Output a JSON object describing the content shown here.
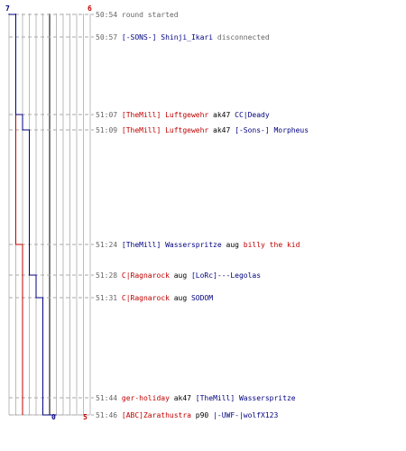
{
  "scores": {
    "top_left": "7",
    "top_right": "6",
    "bottom_blue": "0",
    "bottom_red": "5"
  },
  "colors": {
    "team_red": "#c00000",
    "team_blue": "#000080",
    "time": "#666666",
    "grid": "#bbbbbb"
  },
  "events": [
    {
      "time": "50:54",
      "parts": [
        {
          "text": "round started",
          "c": "gray"
        }
      ]
    },
    {
      "time": "50:57",
      "parts": [
        {
          "text": "[-SONS-] Shinji_Ikari",
          "c": "blue"
        },
        {
          "text": " disconnected",
          "c": "gray"
        }
      ]
    },
    {
      "time": "51:07",
      "parts": [
        {
          "text": "[TheMill] Luftgewehr",
          "c": "red"
        },
        {
          "text": " ak47 ",
          "c": "black"
        },
        {
          "text": "CC|Deady",
          "c": "blue"
        }
      ]
    },
    {
      "time": "51:09",
      "parts": [
        {
          "text": "[TheMill] Luftgewehr",
          "c": "red"
        },
        {
          "text": " ak47 ",
          "c": "black"
        },
        {
          "text": "[-Sons-] Morpheus",
          "c": "blue"
        }
      ]
    },
    {
      "time": "51:24",
      "parts": [
        {
          "text": "[TheMill] Wasserspritze",
          "c": "blue"
        },
        {
          "text": " aug ",
          "c": "black"
        },
        {
          "text": "billy the kid",
          "c": "red"
        }
      ]
    },
    {
      "time": "51:28",
      "parts": [
        {
          "text": "C|Ragnarock",
          "c": "red"
        },
        {
          "text": " aug ",
          "c": "black"
        },
        {
          "text": "[LoRc]---Legolas",
          "c": "blue"
        }
      ]
    },
    {
      "time": "51:31",
      "parts": [
        {
          "text": "C|Ragnarock",
          "c": "red"
        },
        {
          "text": " aug ",
          "c": "black"
        },
        {
          "text": "SODOM",
          "c": "blue"
        }
      ]
    },
    {
      "time": "51:44",
      "parts": [
        {
          "text": "ger-holiday",
          "c": "red"
        },
        {
          "text": " ak47 ",
          "c": "black"
        },
        {
          "text": "[TheMill] Wasserspritze",
          "c": "blue"
        }
      ]
    },
    {
      "time": "51:46",
      "parts": [
        {
          "text": "[ABC]Zarathustra",
          "c": "red"
        },
        {
          "text": " p90 ",
          "c": "black"
        },
        {
          "text": "|-UWF-|wolfX123",
          "c": "blue"
        }
      ]
    }
  ],
  "team_alive": {
    "blue": [
      7,
      6,
      6,
      5,
      4,
      4,
      3,
      2,
      2,
      1,
      0
    ],
    "red": [
      6,
      6,
      6,
      6,
      6,
      5,
      5,
      5,
      5,
      5,
      5
    ]
  }
}
